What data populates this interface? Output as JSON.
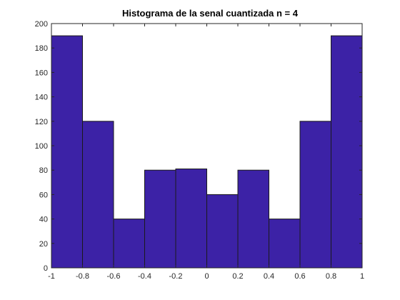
{
  "chart_data": {
    "type": "bar",
    "title": "Histograma de la senal cuantizada n = 4",
    "xlabel": "",
    "ylabel": "",
    "bin_edges": [
      -1,
      -0.8,
      -0.6,
      -0.4,
      -0.2,
      0,
      0.2,
      0.4,
      0.6,
      0.8,
      1
    ],
    "values": [
      190,
      120,
      40,
      80,
      81,
      60,
      80,
      40,
      120,
      190
    ],
    "xlim": [
      -1,
      1
    ],
    "ylim": [
      0,
      200
    ],
    "xticks": [
      "-1",
      "-0.8",
      "-0.6",
      "-0.4",
      "-0.2",
      "0",
      "0.2",
      "0.4",
      "0.6",
      "0.8",
      "1"
    ],
    "yticks": [
      "0",
      "20",
      "40",
      "60",
      "80",
      "100",
      "120",
      "140",
      "160",
      "180",
      "200"
    ],
    "grid": false,
    "bar_color": "#3c22a6",
    "edge_color": "#1a1a1a",
    "axis_color": "#262626"
  }
}
